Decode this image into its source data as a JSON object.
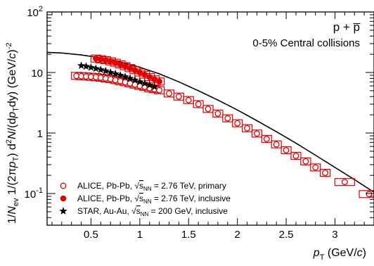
{
  "chart_data": {
    "type": "scatter",
    "ylog": true,
    "xlim": [
      0.05,
      3.4
    ],
    "ylim": [
      0.03,
      100
    ],
    "x_ticks": [
      {
        "v": 0.5,
        "label": "0.5"
      },
      {
        "v": 1,
        "label": "1"
      },
      {
        "v": 1.5,
        "label": "1.5"
      },
      {
        "v": 2,
        "label": "2"
      },
      {
        "v": 2.5,
        "label": "2.5"
      },
      {
        "v": 3,
        "label": "3"
      }
    ],
    "y_ticks": [
      {
        "v": 100,
        "base": "10",
        "exp": "2"
      },
      {
        "v": 10,
        "base": "10",
        "exp": ""
      },
      {
        "v": 1,
        "base": "1",
        "exp": ""
      },
      {
        "v": 0.1,
        "base": "10",
        "exp": "-1"
      }
    ],
    "xlabel": {
      "main": "p",
      "sub": "T",
      "unit_open": " (GeV/",
      "unit_italic": "c",
      "unit_close": ")"
    },
    "ylabel": {
      "p1": "1/",
      "N": "N",
      "ev": "ev",
      "p2": " 1/(2π",
      "p": "p",
      "T": "T",
      "p3": ") d",
      "two": "2",
      "Nd": "N",
      "p4": "/(d",
      "p5": "p",
      "T2": "T",
      "p6": "dy) (GeV/",
      "c": "c",
      "p7": ")",
      "minus2": "-2"
    },
    "annotation_line1": "p + p̅",
    "annotation_line2": "0-5% Central collisions",
    "legend_position": "bottom-left",
    "series": [
      {
        "name": "ALICE, Pb-Pb, √sNN = 2.76 TeV, primary",
        "legend": {
          "pre": "ALICE, Pb-Pb, ",
          "s": "s",
          "nn": "NN",
          "post": " = 2.76 TeV, primary"
        },
        "marker": "open-circle",
        "color": "#e00000",
        "points": [
          [
            0.35,
            8.8
          ],
          [
            0.4,
            8.7
          ],
          [
            0.45,
            8.6
          ],
          [
            0.5,
            8.5
          ],
          [
            0.55,
            8.4
          ],
          [
            0.6,
            8.2
          ],
          [
            0.65,
            8.0
          ],
          [
            0.7,
            7.8
          ],
          [
            0.75,
            7.5
          ],
          [
            0.8,
            7.2
          ],
          [
            0.85,
            6.9
          ],
          [
            0.9,
            6.6
          ],
          [
            0.95,
            6.3
          ],
          [
            1.0,
            6.0
          ],
          [
            1.05,
            5.8
          ],
          [
            1.1,
            5.5
          ],
          [
            1.15,
            5.3
          ],
          [
            1.2,
            5.1
          ],
          [
            1.3,
            4.5
          ],
          [
            1.4,
            4.0
          ],
          [
            1.5,
            3.5
          ],
          [
            1.6,
            3.0
          ],
          [
            1.7,
            2.5
          ],
          [
            1.8,
            2.1
          ],
          [
            1.9,
            1.75
          ],
          [
            2.0,
            1.45
          ],
          [
            2.1,
            1.2
          ],
          [
            2.2,
            0.98
          ],
          [
            2.3,
            0.8
          ],
          [
            2.4,
            0.65
          ],
          [
            2.5,
            0.52
          ],
          [
            2.6,
            0.42
          ],
          [
            2.7,
            0.34
          ],
          [
            2.8,
            0.27
          ],
          [
            2.9,
            0.22
          ],
          [
            3.1,
            0.155
          ],
          [
            3.35,
            0.098
          ]
        ]
      },
      {
        "name": "ALICE, Pb-Pb, √sNN = 2.76 TeV, inclusive",
        "legend": {
          "pre": "ALICE, Pb-Pb, ",
          "s": "s",
          "nn": "NN",
          "post": " = 2.76 TeV, inclusive"
        },
        "marker": "filled-circle",
        "color": "#e00000",
        "points": [
          [
            0.55,
            17.0
          ],
          [
            0.6,
            16.5
          ],
          [
            0.65,
            16.0
          ],
          [
            0.7,
            15.3
          ],
          [
            0.75,
            14.5
          ],
          [
            0.8,
            13.6
          ],
          [
            0.85,
            12.7
          ],
          [
            0.9,
            11.8
          ],
          [
            0.95,
            10.9
          ],
          [
            1.0,
            10.0
          ],
          [
            1.05,
            9.2
          ],
          [
            1.1,
            8.4
          ],
          [
            1.15,
            7.7
          ],
          [
            1.2,
            7.1
          ]
        ]
      },
      {
        "name": "STAR, Au-Au, √sNN = 200 GeV, inclusive",
        "legend": {
          "pre": "STAR, Au-Au, ",
          "s": "s",
          "nn": "NN",
          "post": " = 200 GeV, inclusive"
        },
        "marker": "star",
        "color": "#000000",
        "points": [
          [
            0.4,
            13.0
          ],
          [
            0.45,
            12.6
          ],
          [
            0.5,
            12.1
          ],
          [
            0.55,
            11.6
          ],
          [
            0.6,
            11.1
          ],
          [
            0.65,
            10.6
          ],
          [
            0.7,
            10.0
          ],
          [
            0.75,
            9.5
          ],
          [
            0.8,
            9.0
          ],
          [
            0.85,
            8.5
          ],
          [
            0.9,
            8.0
          ],
          [
            0.95,
            7.5
          ],
          [
            1.0,
            7.0
          ],
          [
            1.05,
            6.6
          ],
          [
            1.1,
            6.2
          ],
          [
            1.15,
            5.8
          ]
        ]
      }
    ],
    "curve": {
      "color": "#000000",
      "points": [
        [
          0.05,
          21.5
        ],
        [
          0.2,
          21.0
        ],
        [
          0.4,
          19.5
        ],
        [
          0.6,
          17.5
        ],
        [
          0.8,
          15.0
        ],
        [
          1.0,
          12.2
        ],
        [
          1.2,
          9.5
        ],
        [
          1.4,
          7.0
        ],
        [
          1.6,
          5.0
        ],
        [
          1.8,
          3.5
        ],
        [
          2.0,
          2.4
        ],
        [
          2.2,
          1.6
        ],
        [
          2.4,
          1.05
        ],
        [
          2.6,
          0.68
        ],
        [
          2.8,
          0.43
        ],
        [
          3.0,
          0.27
        ],
        [
          3.2,
          0.17
        ],
        [
          3.4,
          0.105
        ]
      ]
    }
  }
}
